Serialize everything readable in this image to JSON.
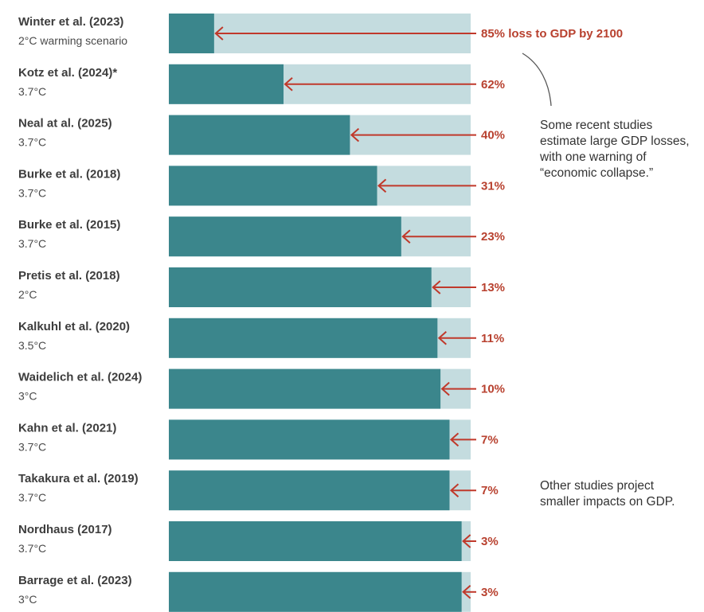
{
  "chart_data": {
    "type": "bar",
    "orientation": "horizontal",
    "unit": "%",
    "categories": [
      "Winter et al. (2023)",
      "Kotz et al. (2024)*",
      "Neal at al. (2025)",
      "Burke et al. (2018)",
      "Burke et al. (2015)",
      "Pretis et al. (2018)",
      "Kalkuhl et al. (2020)",
      "Waidelich et al. (2024)",
      "Kahn et al. (2021)",
      "Takakura et al. (2019)",
      "Nordhaus (2017)",
      "Barrage et al. (2023)"
    ],
    "scenarios": [
      "2°C warming scenario",
      "3.7°C",
      "3.7°C",
      "3.7°C",
      "3.7°C",
      "2°C",
      "3.5°C",
      "3°C",
      "3.7°C",
      "3.7°C",
      "3.7°C",
      "3°C"
    ],
    "values": [
      85,
      62,
      40,
      31,
      23,
      13,
      11,
      10,
      7,
      7,
      3,
      3
    ],
    "value_labels": [
      "85% loss to GDP by 2100",
      "62%",
      "40%",
      "31%",
      "23%",
      "13%",
      "11%",
      "10%",
      "7%",
      "7%",
      "3%",
      "3%"
    ],
    "xlim": [
      0,
      100
    ],
    "annotations": [
      "Some recent studies\nestimate large GDP losses,\nwith one warning of\n“economic collapse.”",
      "Other studies project\nsmaller impacts on GDP."
    ],
    "colors": {
      "remaining": "#3b868c",
      "loss": "#c4dcdf",
      "arrow": "#c0392b",
      "label": "#b8412f"
    }
  }
}
